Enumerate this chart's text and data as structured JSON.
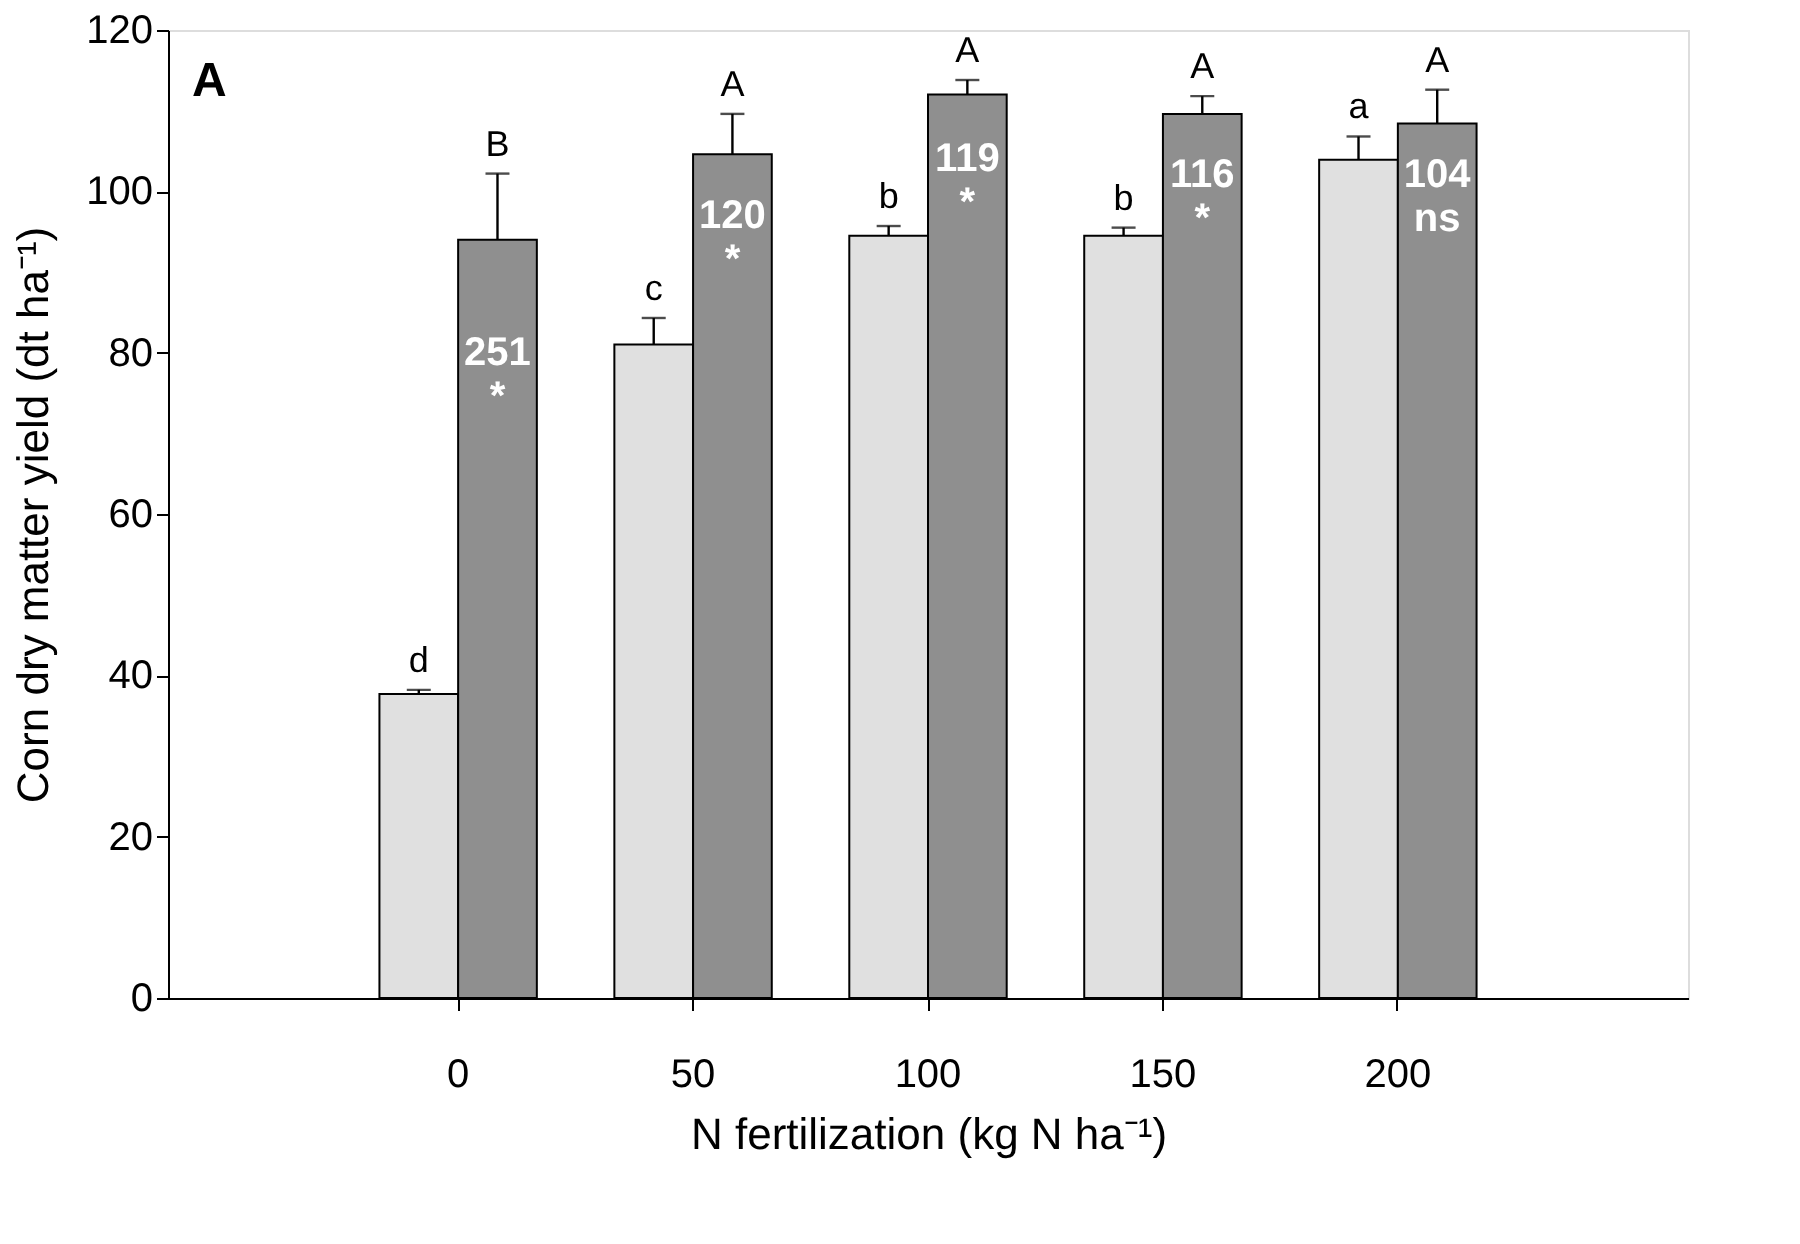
{
  "chart_data": {
    "type": "bar",
    "xlabel": "N fertilization (kg N ha⁻¹)",
    "ylabel": "Corn dry matter yield (dt ha⁻¹)",
    "categories": [
      "0",
      "50",
      "100",
      "150",
      "200"
    ],
    "series": [
      {
        "color": "#e0e0e0",
        "values": [
          37.7,
          81,
          94.5,
          94.5,
          103.9
        ],
        "errors": [
          [
            37.7,
            38.2
          ],
          [
            81,
            84.3
          ],
          [
            94.5,
            95.7
          ],
          [
            94.5,
            95.5
          ],
          [
            103.9,
            106.8
          ]
        ],
        "value_labels": [
          "d",
          "c",
          "b",
          "b",
          "a"
        ]
      },
      {
        "color": "#8f8f8f",
        "values": [
          94,
          104.6,
          112,
          109.6,
          108.4
        ],
        "errors": [
          [
            94,
            102.2
          ],
          [
            104.6,
            109.6
          ],
          [
            112,
            113.8
          ],
          [
            109.6,
            111.8
          ],
          [
            108.4,
            112.6
          ]
        ],
        "value_labels": [
          "B",
          "A",
          "A",
          "A",
          "A"
        ]
      }
    ],
    "ylim": [
      0,
      120
    ],
    "yticks": [
      0,
      20,
      40,
      60,
      80,
      100,
      120
    ],
    "grid": false,
    "annotations": [
      "A",
      {
        "text": "251\n*",
        "x": "0",
        "y": 80
      },
      {
        "text": "120\n*",
        "x": "50",
        "y": 97
      },
      {
        "text": "119\n*",
        "x": "100",
        "y": 104
      },
      {
        "text": "116\n*",
        "x": "150",
        "y": 102
      },
      {
        "text": "104\nns",
        "x": "200",
        "y": 102
      }
    ]
  }
}
